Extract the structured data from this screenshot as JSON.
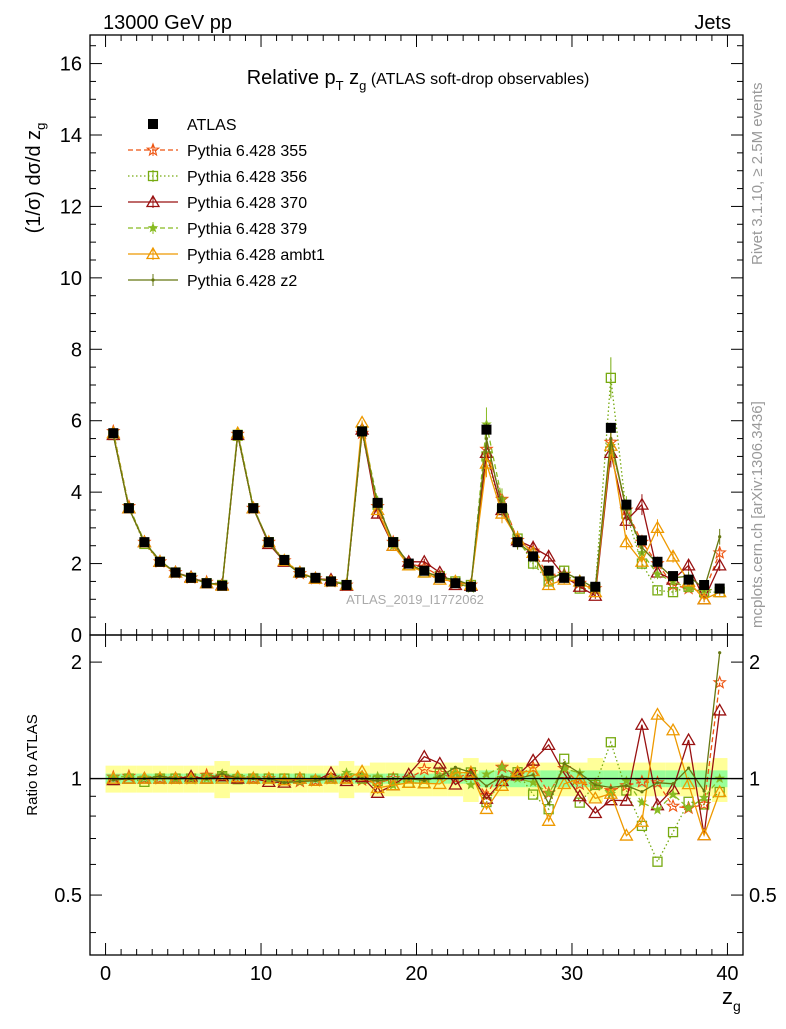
{
  "header": {
    "left": "13000 GeV pp",
    "right": "Jets"
  },
  "side": {
    "rivet": "Rivet 3.1.10, ≥ 2.5M events",
    "mcplots": "mcplots.cern.ch [arXiv:1306.3436]"
  },
  "watermark": "ATLAS_2019_I1772062",
  "chart_data": {
    "type": "line",
    "title_main": "Relative p",
    "title_sub_T": "T",
    "title_z": " z",
    "title_sub_g": "g",
    "title_rest": " (ATLAS soft-drop observables)",
    "xlabel": "z",
    "xlabel_sub": "g",
    "ylabel": "(1/σ) dσ/d z",
    "ylabel_sub": "g",
    "ratio_ylabel": "Ratio to ATLAS",
    "xlim": [
      -1,
      41
    ],
    "ylim": [
      0,
      16.8
    ],
    "ratio_ylim": [
      0.35,
      2.35
    ],
    "x_ticks": [
      0,
      10,
      20,
      30,
      40
    ],
    "y_ticks": [
      0,
      2,
      4,
      6,
      8,
      10,
      12,
      14,
      16
    ],
    "ratio_ticks": [
      0.5,
      1,
      2
    ],
    "ratio_ticks_left": [
      "0.5",
      "1",
      "2"
    ],
    "ratio_ticks_right": [
      "0.5",
      "1",
      "2"
    ],
    "x": [
      0.5,
      1.5,
      2.5,
      3.5,
      4.5,
      5.5,
      6.5,
      7.5,
      8.5,
      9.5,
      10.5,
      11.5,
      12.5,
      13.5,
      14.5,
      15.5,
      16.5,
      17.5,
      18.5,
      19.5,
      20.5,
      21.5,
      22.5,
      23.5,
      24.5,
      25.5,
      26.5,
      27.5,
      28.5,
      29.5,
      30.5,
      31.5,
      32.5,
      33.5,
      34.5,
      35.5,
      36.5,
      37.5,
      38.5,
      39.5
    ],
    "data": {
      "name": "ATLAS",
      "values": [
        5.65,
        3.55,
        2.6,
        2.05,
        1.75,
        1.6,
        1.45,
        1.38,
        5.6,
        3.55,
        2.6,
        2.1,
        1.75,
        1.6,
        1.5,
        1.4,
        5.7,
        3.7,
        2.6,
        2.0,
        1.8,
        1.6,
        1.45,
        1.35,
        5.75,
        3.55,
        2.6,
        2.2,
        1.8,
        1.6,
        1.5,
        1.35,
        5.8,
        3.65,
        2.65,
        2.05,
        1.65,
        1.55,
        1.4,
        1.3
      ]
    },
    "series": [
      {
        "name": "Pythia 6.428 355",
        "color": "#ee5511",
        "marker": "star",
        "dash": "5,3",
        "values": [
          5.7,
          3.6,
          2.6,
          2.05,
          1.75,
          1.6,
          1.48,
          1.4,
          5.62,
          3.55,
          2.6,
          2.08,
          1.72,
          1.58,
          1.5,
          1.4,
          5.65,
          3.6,
          2.6,
          2.0,
          1.9,
          1.65,
          1.45,
          1.4,
          5.2,
          3.8,
          2.65,
          2.35,
          1.65,
          1.7,
          1.45,
          1.3,
          5.4,
          3.5,
          2.6,
          2.0,
          1.4,
          1.3,
          1.2,
          2.3
        ]
      },
      {
        "name": "Pythia 6.428 356",
        "color": "#77aa11",
        "marker": "square",
        "dash": "1.5,2.5",
        "values": [
          5.6,
          3.55,
          2.55,
          2.05,
          1.75,
          1.6,
          1.45,
          1.4,
          5.58,
          3.55,
          2.6,
          2.1,
          1.75,
          1.58,
          1.5,
          1.4,
          5.7,
          3.65,
          2.6,
          1.95,
          1.75,
          1.65,
          1.5,
          1.4,
          5.0,
          3.5,
          2.7,
          2.0,
          1.5,
          1.8,
          1.3,
          1.3,
          7.2,
          3.4,
          2.0,
          1.25,
          1.2,
          1.35,
          1.2,
          1.2
        ]
      },
      {
        "name": "Pythia 6.428 370",
        "color": "#991111",
        "marker": "triangle",
        "dash": "",
        "values": [
          5.6,
          3.55,
          2.6,
          2.05,
          1.75,
          1.62,
          1.45,
          1.4,
          5.6,
          3.55,
          2.55,
          2.05,
          1.75,
          1.58,
          1.55,
          1.38,
          5.75,
          3.4,
          2.5,
          2.05,
          2.05,
          1.75,
          1.4,
          1.38,
          5.1,
          3.5,
          2.65,
          2.45,
          2.2,
          1.65,
          1.35,
          1.1,
          5.1,
          3.2,
          3.65,
          1.75,
          1.55,
          1.95,
          1.0,
          1.95
        ]
      },
      {
        "name": "Pythia 6.428 379",
        "color": "#88bb22",
        "marker": "smallstar",
        "dash": "5,3",
        "values": [
          5.7,
          3.6,
          2.62,
          2.08,
          1.75,
          1.6,
          1.45,
          1.42,
          5.7,
          3.6,
          2.58,
          2.08,
          1.72,
          1.6,
          1.5,
          1.45,
          5.8,
          3.75,
          2.5,
          2.0,
          1.78,
          1.62,
          1.5,
          1.3,
          5.9,
          3.8,
          2.6,
          2.15,
          1.65,
          1.7,
          1.55,
          1.3,
          5.3,
          3.6,
          2.3,
          1.7,
          1.5,
          1.3,
          1.25,
          1.3
        ]
      },
      {
        "name": "Pythia 6.428 ambt1",
        "color": "#ee9900",
        "marker": "triangle",
        "dash": "",
        "values": [
          5.65,
          3.55,
          2.6,
          2.05,
          1.75,
          1.6,
          1.45,
          1.38,
          5.65,
          3.55,
          2.6,
          2.08,
          1.75,
          1.58,
          1.5,
          1.4,
          5.95,
          3.5,
          2.5,
          1.95,
          1.75,
          1.55,
          1.5,
          1.4,
          4.8,
          3.4,
          2.7,
          2.3,
          1.4,
          1.55,
          1.5,
          1.2,
          5.3,
          2.6,
          2.05,
          3.0,
          2.2,
          1.5,
          1.0,
          1.2
        ]
      },
      {
        "name": "Pythia 6.428 z2",
        "color": "#667711",
        "marker": "dot",
        "dash": "",
        "values": [
          5.6,
          3.55,
          2.6,
          2.08,
          1.75,
          1.6,
          1.45,
          1.42,
          5.62,
          3.55,
          2.6,
          2.05,
          1.72,
          1.58,
          1.5,
          1.4,
          5.7,
          3.65,
          2.6,
          2.0,
          1.78,
          1.62,
          1.55,
          1.4,
          5.5,
          3.6,
          2.6,
          2.25,
          1.55,
          1.75,
          1.55,
          1.3,
          5.5,
          3.5,
          2.45,
          2.0,
          1.6,
          1.65,
          1.3,
          2.75
        ]
      }
    ],
    "legend_position": "top-left"
  }
}
